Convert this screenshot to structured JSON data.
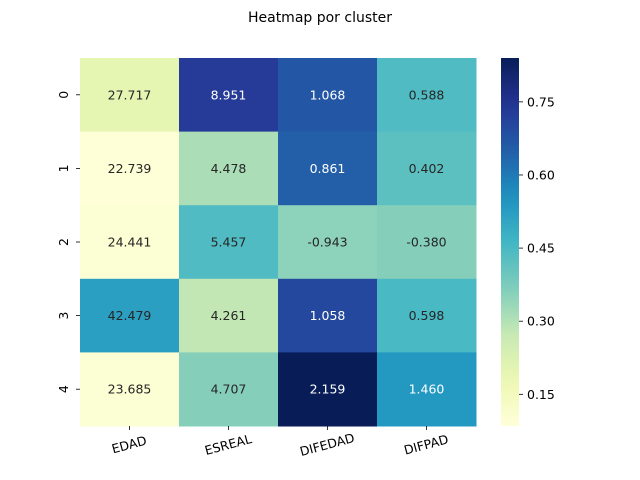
{
  "chart_data": {
    "type": "heatmap",
    "title": "Heatmap por cluster",
    "columns": [
      "EDAD",
      "ESREAL",
      "DIFEDAD",
      "DIFPAD"
    ],
    "rows": [
      "0",
      "1",
      "2",
      "3",
      "4"
    ],
    "annotations": [
      [
        "27.717",
        "8.951",
        "1.068",
        "0.588"
      ],
      [
        "22.739",
        "4.478",
        "0.861",
        "0.402"
      ],
      [
        "24.441",
        "5.457",
        "-0.943",
        "-0.380"
      ],
      [
        "42.479",
        "4.261",
        "1.058",
        "0.598"
      ],
      [
        "23.685",
        "4.707",
        "2.159",
        "1.460"
      ]
    ],
    "color_values": [
      [
        0.2,
        0.73,
        0.67,
        0.44
      ],
      [
        0.09,
        0.31,
        0.65,
        0.42
      ],
      [
        0.1,
        0.44,
        0.35,
        0.36
      ],
      [
        0.52,
        0.28,
        0.7,
        0.45
      ],
      [
        0.1,
        0.36,
        0.84,
        0.54
      ]
    ],
    "colorbar": {
      "min": 0.085,
      "max": 0.84,
      "ticks": [
        0.15,
        0.3,
        0.45,
        0.6,
        0.75
      ],
      "tick_labels": [
        "0.15",
        "0.30",
        "0.45",
        "0.60",
        "0.75"
      ],
      "colormap": "YlGnBu"
    },
    "xlabel": "",
    "ylabel": ""
  }
}
